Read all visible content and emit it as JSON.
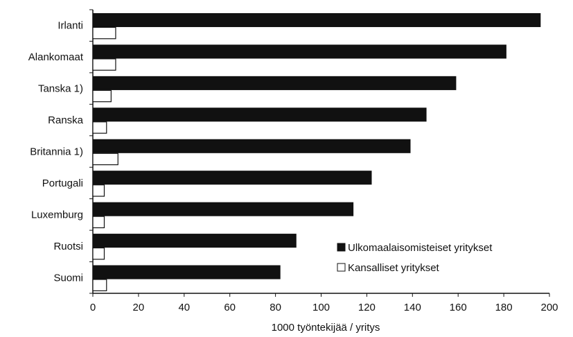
{
  "chart_data": {
    "type": "bar",
    "orientation": "horizontal",
    "categories": [
      "Irlanti",
      "Alankomaat",
      "Tanska 1)",
      "Ranska",
      "Britannia 1)",
      "Portugali",
      "Luxemburg",
      "Ruotsi",
      "Suomi"
    ],
    "series": [
      {
        "name": "Ulkomaalaisomisteiset yritykset",
        "values": [
          196,
          181,
          159,
          146,
          139,
          122,
          114,
          89,
          82
        ],
        "color": "#111111"
      },
      {
        "name": "Kansalliset yritykset",
        "values": [
          10,
          10,
          8,
          6,
          11,
          5,
          5,
          5,
          6
        ],
        "color": "#ffffff"
      }
    ],
    "xlabel": "1000 työntekijää / yritys",
    "xlim": [
      0,
      200
    ],
    "xticks": [
      "0",
      "20",
      "40",
      "60",
      "80",
      "100",
      "120",
      "140",
      "160",
      "180",
      "200"
    ],
    "grid": false,
    "legend": "bottom-right"
  }
}
